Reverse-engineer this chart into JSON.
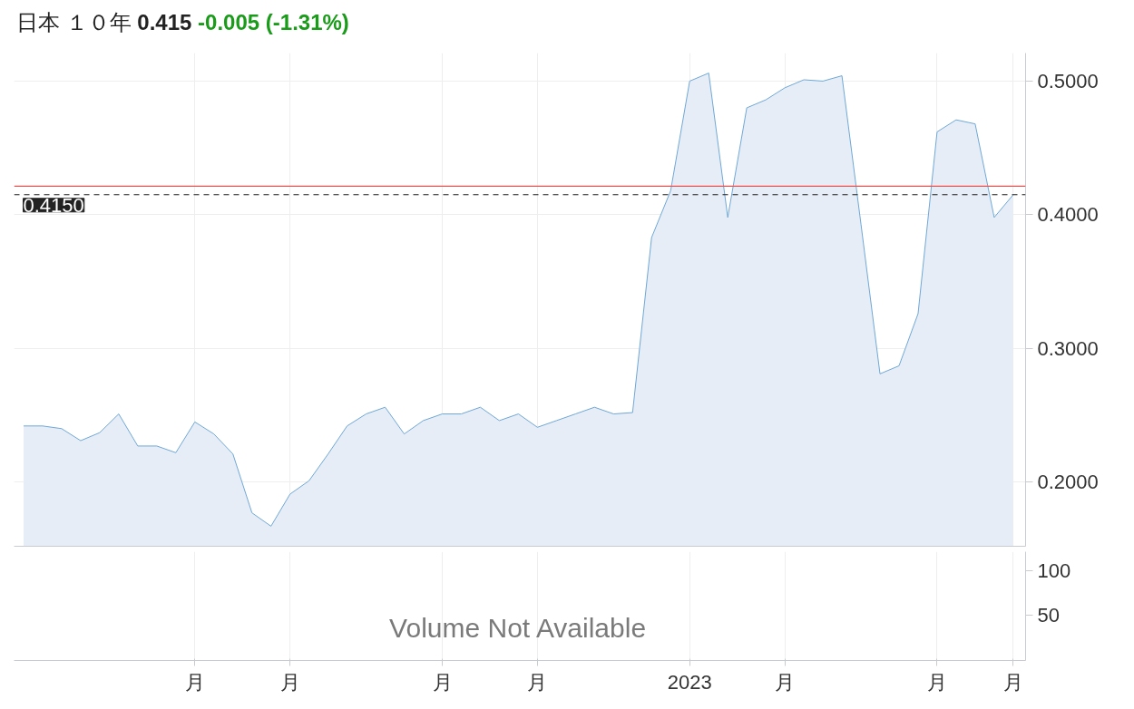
{
  "chart_data": [
    {
      "type": "area",
      "title": "日本 １０年",
      "subtitle": "0.415",
      "annotations": [
        "-0.005",
        "(-1.31%)"
      ],
      "categories": [
        null,
        null,
        null,
        null,
        null,
        null,
        null,
        null,
        null,
        null,
        null,
        null,
        null,
        null,
        null,
        null,
        null,
        null,
        null,
        null,
        null,
        null,
        null,
        null,
        null,
        null,
        null,
        null,
        null,
        null,
        null,
        null,
        null,
        null,
        null,
        null,
        null,
        null,
        null,
        null,
        null,
        null,
        null,
        null,
        null,
        null,
        null,
        null,
        null,
        null,
        null,
        null,
        null
      ],
      "series": [
        {
          "color": "#6fa8d6",
          "values": [
            0.242,
            0.242,
            0.24,
            0.231,
            0.237,
            0.251,
            0.227,
            0.227,
            0.222,
            0.245,
            0.236,
            0.221,
            0.177,
            0.167,
            0.191,
            0.201,
            0.221,
            0.242,
            0.251,
            0.256,
            0.236,
            0.246,
            0.251,
            0.251,
            0.256,
            0.246,
            0.251,
            0.241,
            0.246,
            0.251,
            0.256,
            0.251,
            0.252,
            0.383,
            0.418,
            0.5,
            0.506,
            0.398,
            0.48,
            0.486,
            0.495,
            0.501,
            0.5,
            0.504,
            0.393,
            0.281,
            0.287,
            0.326,
            0.462,
            0.471,
            0.468,
            0.398,
            0.415
          ]
        }
      ],
      "ylim": [
        0.152,
        0.521
      ],
      "yticks": [
        {
          "value": 0.2,
          "label": "0.2000"
        },
        {
          "value": 0.3,
          "label": "0.3000"
        },
        {
          "value": 0.4,
          "label": "0.4000"
        },
        {
          "value": 0.5,
          "label": "0.5000"
        }
      ],
      "ref_lines": [
        {
          "axis": "y",
          "value": 0.4214,
          "color": "#ef5350",
          "line_style": "solid"
        },
        {
          "axis": "y",
          "value": 0.415,
          "label": "0.4150",
          "color": "#222222",
          "line_style": "dashed"
        }
      ],
      "grid": true,
      "tick_labels": "y"
    },
    {
      "type": "bar",
      "annotations": [
        "Volume Not Available"
      ],
      "categories": [
        null,
        null,
        null,
        null,
        null,
        null,
        null,
        null,
        null,
        "月",
        null,
        null,
        null,
        null,
        "月",
        null,
        null,
        null,
        null,
        null,
        null,
        null,
        "月",
        null,
        null,
        null,
        null,
        "月",
        null,
        null,
        null,
        null,
        null,
        null,
        null,
        "2023",
        null,
        null,
        null,
        null,
        "月",
        null,
        null,
        null,
        null,
        null,
        null,
        null,
        "月",
        null,
        null,
        null,
        "月"
      ],
      "values": [
        null,
        null,
        null,
        null,
        null,
        null,
        null,
        null,
        null,
        null,
        null,
        null,
        null,
        null,
        null,
        null,
        null,
        null,
        null,
        null,
        null,
        null,
        null,
        null,
        null,
        null,
        null,
        null,
        null,
        null,
        null,
        null,
        null,
        null,
        null,
        null,
        null,
        null,
        null,
        null,
        null,
        null,
        null,
        null,
        null,
        null,
        null,
        null,
        null,
        null,
        null,
        null,
        null
      ],
      "ylim": [
        0,
        121
      ],
      "yticks": [
        50,
        100
      ],
      "grid": "x"
    }
  ]
}
